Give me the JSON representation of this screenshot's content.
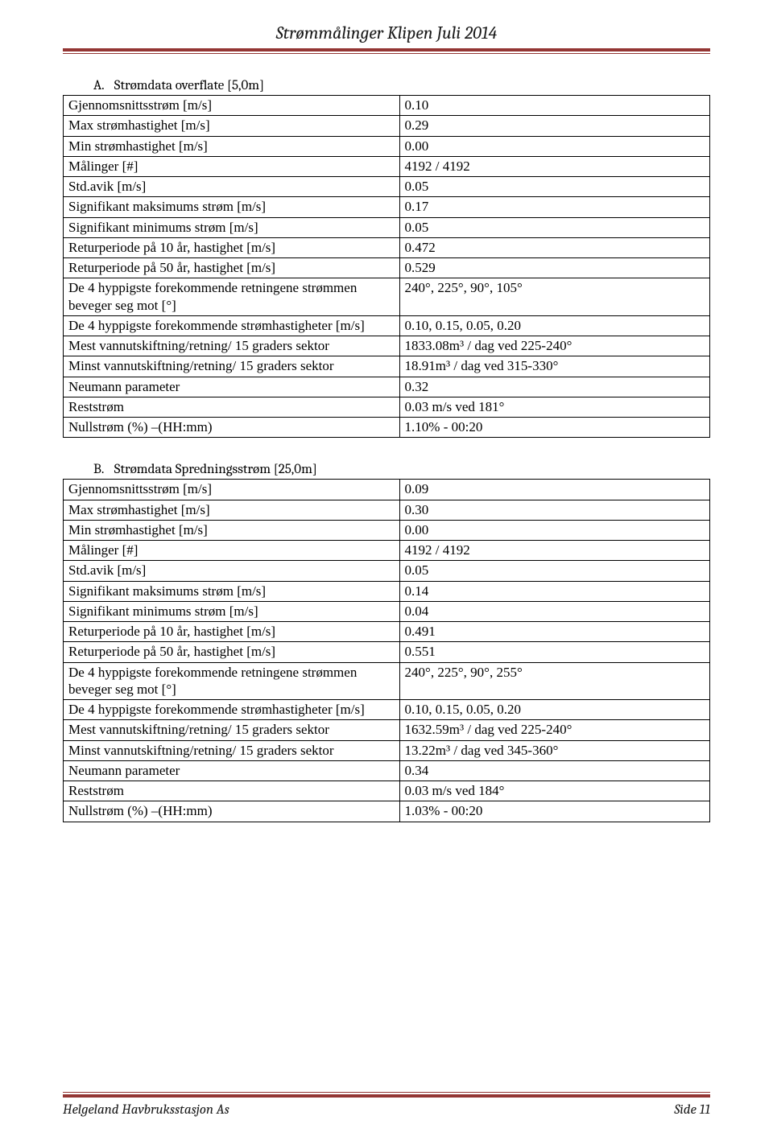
{
  "header": {
    "title": "Strømmålinger Klipen Juli 2014"
  },
  "sectionA": {
    "letter": "A.",
    "title": "Strømdata overflate [5,0m]",
    "rows": [
      {
        "label": "Gjennomsnittsstrøm [m/s]",
        "value": "0.10"
      },
      {
        "label": "Max strømhastighet [m/s]",
        "value": "0.29"
      },
      {
        "label": "Min strømhastighet [m/s]",
        "value": "0.00"
      },
      {
        "label": "Målinger [#]",
        "value": "4192 / 4192"
      },
      {
        "label": "Std.avik [m/s]",
        "value": "0.05"
      },
      {
        "label": "Signifikant maksimums strøm [m/s]",
        "value": "0.17"
      },
      {
        "label": "Signifikant minimums strøm [m/s]",
        "value": "0.05"
      },
      {
        "label": "Returperiode på 10 år, hastighet [m/s]",
        "value": "0.472"
      },
      {
        "label": "Returperiode på 50 år, hastighet [m/s]",
        "value": "0.529"
      },
      {
        "label": "De 4 hyppigste forekommende retningene strømmen beveger seg mot [°]",
        "value": "240°, 225°, 90°, 105°"
      },
      {
        "label": "De 4 hyppigste forekommende strømhastigheter [m/s]",
        "value": "0.10, 0.15, 0.05, 0.20"
      },
      {
        "label": "Mest vannutskiftning/retning/ 15 graders sektor",
        "value": "1833.08m³ / dag ved 225-240°"
      },
      {
        "label": "Minst vannutskiftning/retning/ 15 graders sektor",
        "value": "18.91m³ / dag ved 315-330°"
      },
      {
        "label": "Neumann parameter",
        "value": "0.32"
      },
      {
        "label": "Reststrøm",
        "value": "0.03 m/s ved 181°"
      },
      {
        "label": "Nullstrøm (%) –(HH:mm)",
        "value": "1.10% - 00:20"
      }
    ]
  },
  "sectionB": {
    "letter": "B.",
    "title": "Strømdata Spredningsstrøm [25,0m]",
    "rows": [
      {
        "label": "Gjennomsnittsstrøm [m/s]",
        "value": "0.09"
      },
      {
        "label": "Max strømhastighet [m/s]",
        "value": "0.30"
      },
      {
        "label": "Min strømhastighet [m/s]",
        "value": "0.00"
      },
      {
        "label": "Målinger [#]",
        "value": "4192 / 4192"
      },
      {
        "label": "Std.avik [m/s]",
        "value": "0.05"
      },
      {
        "label": "Signifikant maksimums strøm [m/s]",
        "value": "0.14"
      },
      {
        "label": "Signifikant minimums strøm [m/s]",
        "value": "0.04"
      },
      {
        "label": "Returperiode på 10 år, hastighet [m/s]",
        "value": "0.491"
      },
      {
        "label": "Returperiode på 50 år, hastighet [m/s]",
        "value": "0.551"
      },
      {
        "label": "De 4 hyppigste forekommende retningene strømmen beveger seg mot [°]",
        "value": "240°, 225°, 90°, 255°"
      },
      {
        "label": "De 4 hyppigste forekommende strømhastigheter [m/s]",
        "value": "0.10, 0.15, 0.05, 0.20"
      },
      {
        "label": "Mest vannutskiftning/retning/ 15 graders sektor",
        "value": "1632.59m³ / dag ved 225-240°"
      },
      {
        "label": "Minst vannutskiftning/retning/ 15 graders sektor",
        "value": "13.22m³ / dag ved 345-360°"
      },
      {
        "label": "Neumann parameter",
        "value": "0.34"
      },
      {
        "label": "Reststrøm",
        "value": "0.03 m/s ved 184°"
      },
      {
        "label": "Nullstrøm (%) –(HH:mm)",
        "value": "1.03% - 00:20"
      }
    ]
  },
  "footer": {
    "left": "Helgeland Havbruksstasjon As",
    "right": "Side 11"
  },
  "colors": {
    "rule": "#943634",
    "text": "#000000",
    "background": "#ffffff"
  }
}
